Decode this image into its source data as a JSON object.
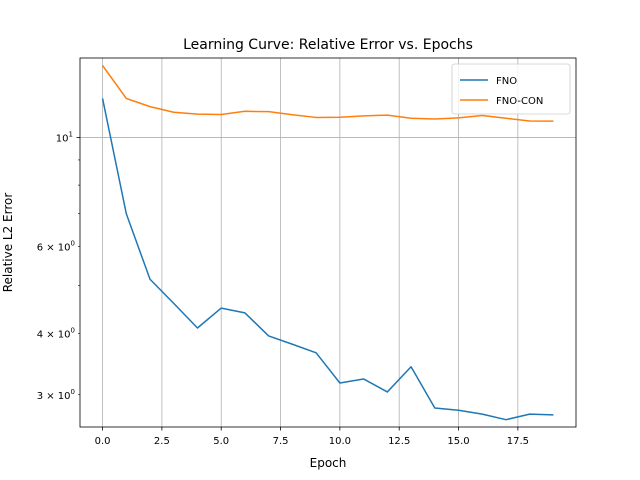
{
  "chart_data": {
    "type": "line",
    "title": "Learning Curve: Relative Error vs. Epochs",
    "xlabel": "Epoch",
    "ylabel": "Relative L2 Error",
    "yscale": "log",
    "xlim": [
      -0.95,
      19.95
    ],
    "ylim": [
      2.58,
      14.5
    ],
    "grid": "on",
    "legend_position": "top-right",
    "x": [
      0,
      1,
      2,
      3,
      4,
      5,
      6,
      7,
      8,
      9,
      10,
      11,
      12,
      13,
      14,
      15,
      16,
      17,
      18,
      19
    ],
    "x_ticks": [
      {
        "value": 0,
        "label": "0.0"
      },
      {
        "value": 2.5,
        "label": "2.5"
      },
      {
        "value": 5,
        "label": "5.0"
      },
      {
        "value": 7.5,
        "label": "7.5"
      },
      {
        "value": 10,
        "label": "10.0"
      },
      {
        "value": 12.5,
        "label": "12.5"
      },
      {
        "value": 15,
        "label": "15.0"
      },
      {
        "value": 17.5,
        "label": "17.5"
      }
    ],
    "y_major_ticks": [
      {
        "value": 10,
        "base": "10",
        "exp": "1"
      }
    ],
    "y_minor_ticks": [
      {
        "value": 3,
        "coef": "3",
        "base": "10",
        "exp": "0"
      },
      {
        "value": 4,
        "coef": "4",
        "base": "10",
        "exp": "0"
      },
      {
        "value": 6,
        "coef": "6",
        "base": "10",
        "exp": "0"
      }
    ],
    "y_minor_unlabeled": [
      5,
      7,
      8,
      9
    ],
    "series": [
      {
        "name": "FNO",
        "color": "#1f77b4",
        "values": [
          12.0,
          7.0,
          5.15,
          4.6,
          4.1,
          4.5,
          4.4,
          3.95,
          3.8,
          3.65,
          3.17,
          3.23,
          3.04,
          3.42,
          2.82,
          2.79,
          2.74,
          2.67,
          2.74,
          2.73
        ]
      },
      {
        "name": "FNO-CON",
        "color": "#ff7f0e",
        "values": [
          14.0,
          12.0,
          11.55,
          11.25,
          11.15,
          11.13,
          11.3,
          11.28,
          11.12,
          10.98,
          10.99,
          11.06,
          11.1,
          10.94,
          10.9,
          10.96,
          11.08,
          10.94,
          10.8,
          10.79
        ]
      }
    ]
  }
}
